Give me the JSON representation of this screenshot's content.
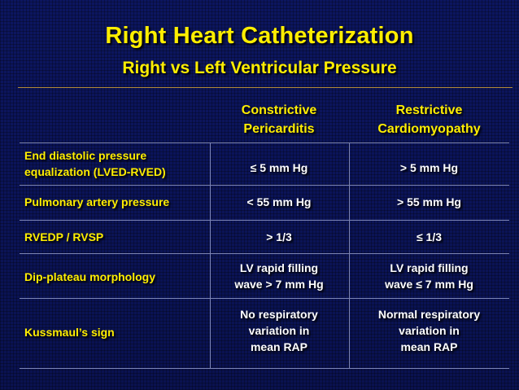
{
  "title": "Right Heart Catheterization",
  "subtitle": "Right vs Left Ventricular Pressure",
  "columns": {
    "constrictive": [
      "Constrictive",
      "Pericarditis"
    ],
    "restrictive": [
      "Restrictive",
      "Cardiomyopathy"
    ]
  },
  "rows": [
    {
      "label": [
        "End diastolic pressure",
        "equalization (LVED-RVED)"
      ],
      "constrictive": [
        "≤ 5 mm Hg"
      ],
      "restrictive": [
        "> 5 mm Hg"
      ]
    },
    {
      "label": [
        "Pulmonary artery pressure"
      ],
      "constrictive": [
        "< 55 mm Hg"
      ],
      "restrictive": [
        "> 55 mm Hg"
      ]
    },
    {
      "label": [
        "RVEDP / RVSP"
      ],
      "constrictive": [
        "> 1/3"
      ],
      "restrictive": [
        "≤ 1/3"
      ]
    },
    {
      "label": [
        "Dip-plateau morphology"
      ],
      "constrictive": [
        "LV rapid filling",
        "wave > 7 mm Hg"
      ],
      "restrictive": [
        "LV rapid filling",
        "wave ≤ 7 mm Hg"
      ]
    },
    {
      "label": [
        "Kussmaul’s sign"
      ],
      "constrictive": [
        "No respiratory",
        "variation in",
        "mean RAP"
      ],
      "restrictive": [
        "Normal respiratory",
        "variation in",
        "mean RAP"
      ]
    }
  ]
}
